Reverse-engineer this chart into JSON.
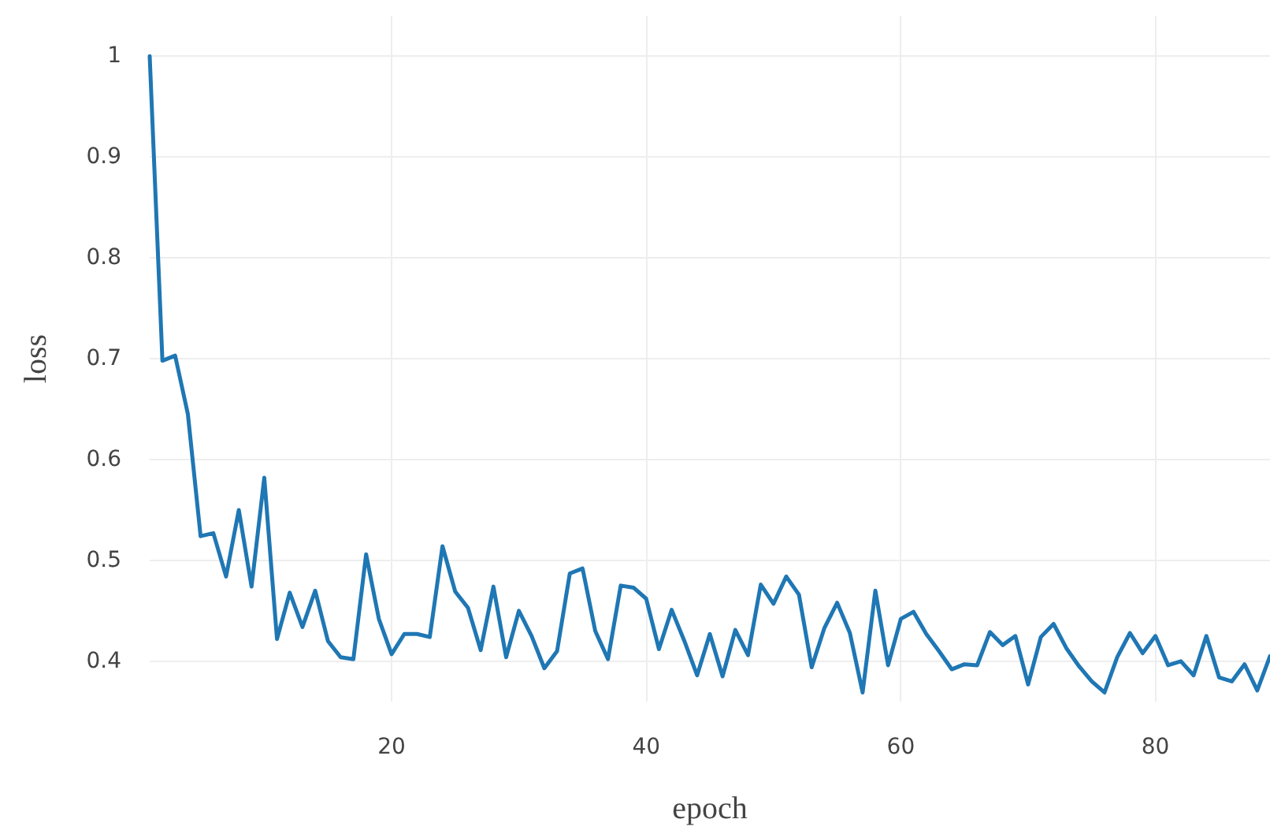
{
  "chart_data": {
    "type": "line",
    "xlabel": "epoch",
    "ylabel": "loss",
    "grid": true,
    "marker": "none",
    "line_style": "solid",
    "xlim": [
      1,
      89
    ],
    "ylim": [
      0.36,
      1.04
    ],
    "xticks": [
      20,
      40,
      60,
      80
    ],
    "yticks": [
      0.4,
      0.5,
      0.6,
      0.7,
      0.8,
      0.9,
      1
    ],
    "x": [
      1,
      2,
      3,
      4,
      5,
      6,
      7,
      8,
      9,
      10,
      11,
      12,
      13,
      14,
      15,
      16,
      17,
      18,
      19,
      20,
      21,
      22,
      23,
      24,
      25,
      26,
      27,
      28,
      29,
      30,
      31,
      32,
      33,
      34,
      35,
      36,
      37,
      38,
      39,
      40,
      41,
      42,
      43,
      44,
      45,
      46,
      47,
      48,
      49,
      50,
      51,
      52,
      53,
      54,
      55,
      56,
      57,
      58,
      59,
      60,
      61,
      62,
      63,
      64,
      65,
      66,
      67,
      68,
      69,
      70,
      71,
      72,
      73,
      74,
      75,
      76,
      77,
      78,
      79,
      80,
      81,
      82,
      83,
      84,
      85,
      86,
      87,
      88,
      89
    ],
    "series": [
      {
        "color": "#1f77b4",
        "values": [
          1.0,
          0.698,
          0.703,
          0.645,
          0.524,
          0.527,
          0.484,
          0.55,
          0.474,
          0.582,
          0.422,
          0.468,
          0.434,
          0.47,
          0.42,
          0.404,
          0.402,
          0.506,
          0.442,
          0.407,
          0.427,
          0.427,
          0.424,
          0.514,
          0.469,
          0.453,
          0.411,
          0.474,
          0.404,
          0.45,
          0.425,
          0.393,
          0.41,
          0.487,
          0.492,
          0.43,
          0.402,
          0.475,
          0.473,
          0.462,
          0.412,
          0.451,
          0.42,
          0.386,
          0.427,
          0.385,
          0.431,
          0.406,
          0.476,
          0.457,
          0.484,
          0.466,
          0.394,
          0.433,
          0.458,
          0.428,
          0.369,
          0.47,
          0.396,
          0.442,
          0.449,
          0.427,
          0.41,
          0.392,
          0.397,
          0.396,
          0.429,
          0.416,
          0.425,
          0.377,
          0.424,
          0.437,
          0.413,
          0.395,
          0.38,
          0.369,
          0.404,
          0.428,
          0.408,
          0.425,
          0.396,
          0.4,
          0.386,
          0.425,
          0.384,
          0.38,
          0.397,
          0.371,
          0.405
        ]
      }
    ]
  }
}
